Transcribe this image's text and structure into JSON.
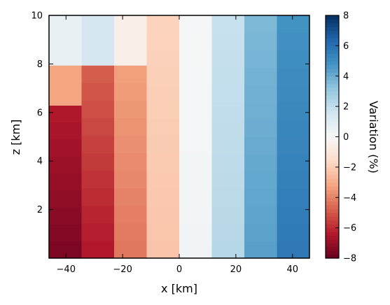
{
  "chart_data": {
    "type": "heatmap",
    "title": "",
    "xlabel": "x [km]",
    "ylabel": "z [km]",
    "colorbar_label": "Variation (%)",
    "xlim": [
      -46,
      46
    ],
    "ylim": [
      0,
      10
    ],
    "x_ticks": [
      -40,
      -20,
      0,
      20,
      40
    ],
    "x_tick_labels": [
      "−40",
      "−20",
      "0",
      "20",
      "40"
    ],
    "y_ticks": [
      2,
      4,
      6,
      8,
      10
    ],
    "y_tick_labels": [
      "2",
      "4",
      "6",
      "8",
      "10"
    ],
    "color_range": [
      -8,
      8
    ],
    "colorbar_ticks": [
      -8,
      -6,
      -4,
      -2,
      0,
      2,
      4,
      6,
      8
    ],
    "colorbar_tick_labels": [
      "−8",
      "−6",
      "−4",
      "−2",
      "0",
      "2",
      "4",
      "6",
      "8"
    ],
    "colormap_stops": [
      "#67001f",
      "#b2182b",
      "#d6604d",
      "#f4a582",
      "#fddbc7",
      "#f7f7f7",
      "#d1e5f0",
      "#92c5de",
      "#4393c3",
      "#2166ac",
      "#053061"
    ],
    "grid": false,
    "columns": [
      {
        "x": [
          -46,
          -34.5
        ],
        "bands": [
          {
            "z": [
              0,
              6.3
            ],
            "bottom": -7.6,
            "top": -6.4
          },
          {
            "z": [
              6.3,
              7.95
            ],
            "value": -3.2
          },
          {
            "z": [
              7.95,
              10
            ],
            "value": 0.6
          }
        ]
      },
      {
        "x": [
          -34.5,
          -23
        ],
        "bands": [
          {
            "z": [
              0,
              7.95
            ],
            "bottom": -6.5,
            "top": -4.8
          },
          {
            "z": [
              7.95,
              10
            ],
            "value": 1.4
          }
        ]
      },
      {
        "x": [
          -23,
          -11.5
        ],
        "bands": [
          {
            "z": [
              0,
              7.95
            ],
            "bottom": -4.3,
            "top": -3.3
          },
          {
            "z": [
              7.95,
              10
            ],
            "value": -0.5
          }
        ]
      },
      {
        "x": [
          -11.5,
          0
        ],
        "bands": [
          {
            "z": [
              0,
              10
            ],
            "bottom": -2.3,
            "top": -1.8
          }
        ]
      },
      {
        "x": [
          0,
          11.5
        ],
        "bands": [
          {
            "z": [
              0,
              10
            ],
            "bottom": 0.25,
            "top": 0.1
          }
        ]
      },
      {
        "x": [
          11.5,
          23
        ],
        "bands": [
          {
            "z": [
              0,
              10
            ],
            "bottom": 2.3,
            "top": 1.8
          }
        ]
      },
      {
        "x": [
          23,
          34.5
        ],
        "bands": [
          {
            "z": [
              0,
              10
            ],
            "bottom": 4.4,
            "top": 3.6
          }
        ]
      },
      {
        "x": [
          34.5,
          46
        ],
        "bands": [
          {
            "z": [
              0,
              10
            ],
            "bottom": 5.8,
            "top": 4.8
          }
        ]
      }
    ]
  }
}
